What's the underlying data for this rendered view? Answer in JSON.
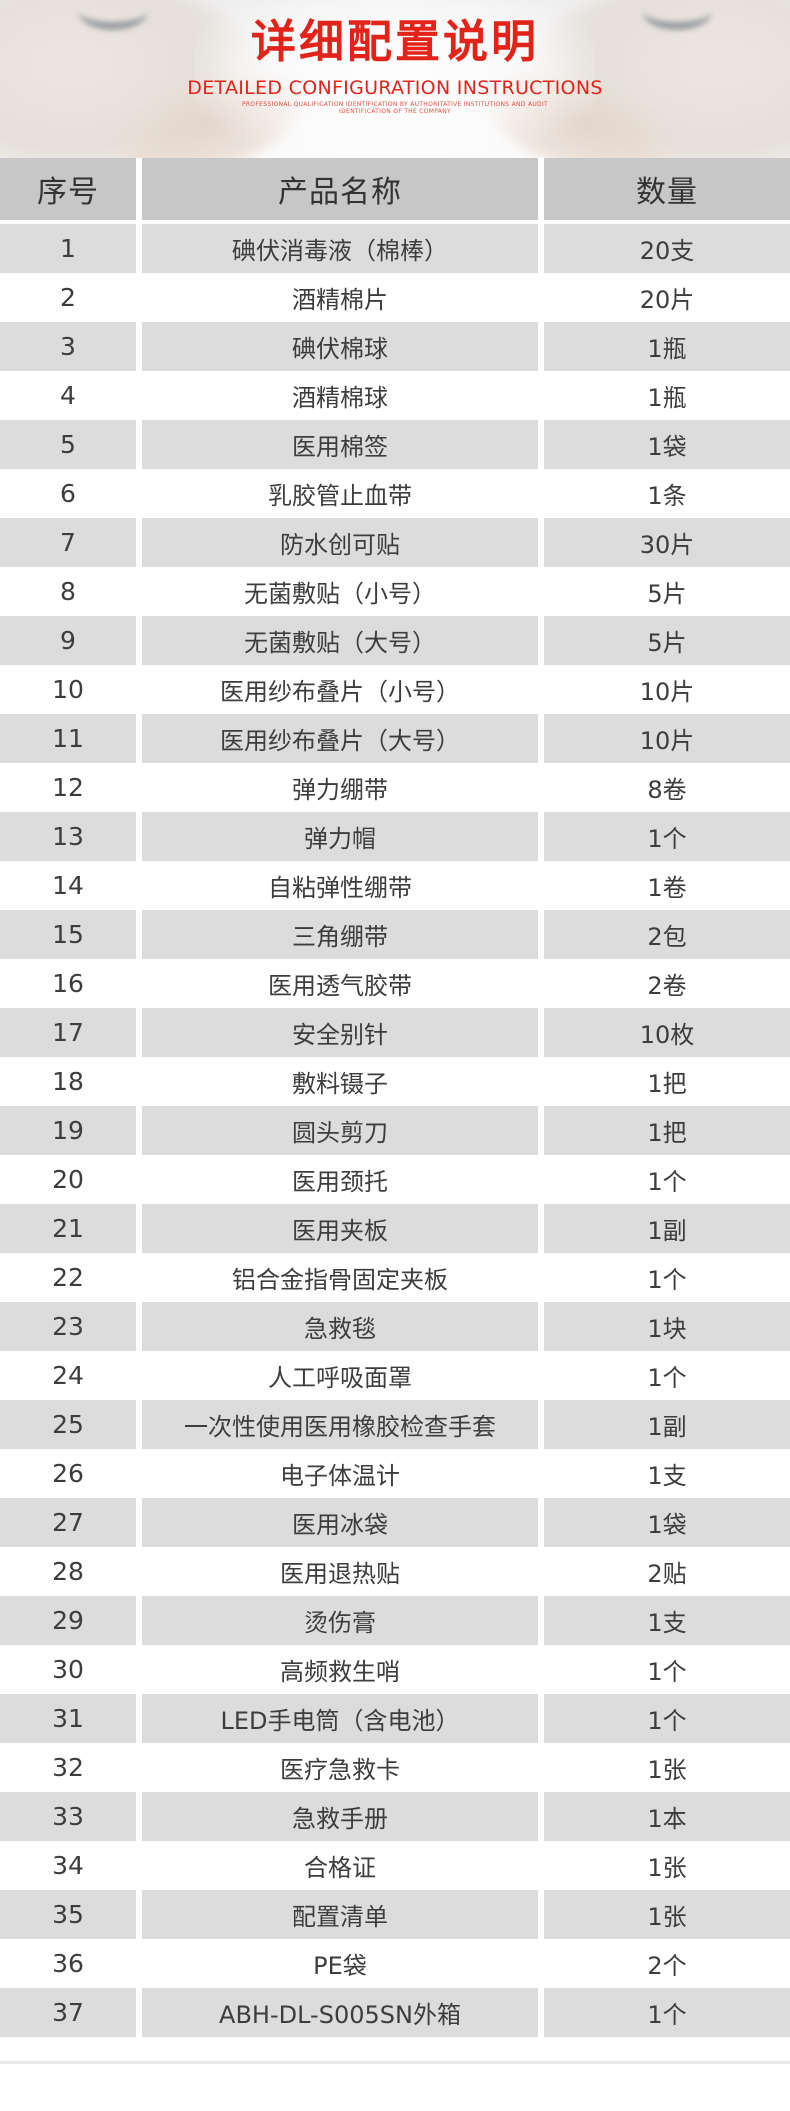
{
  "header": {
    "title": "详细配置说明",
    "subtitle": "DETAILED CONFIGURATION INSTRUCTIONS",
    "fine_print_line1": "PROFESSIONAL QUALIFICATION IDENTIFICATION BY AUTHORITATIVE INSTITUTIONS AND AUDIT",
    "fine_print_line2": "IDENTIFICATION OF THE COMPANY"
  },
  "colors": {
    "accent": "#e2231a",
    "table_header_bg": "#c7c7c7",
    "row_alt_bg": "#dcdcdc",
    "row_bg": "#ffffff",
    "text": "#3d3d3d"
  },
  "table": {
    "columns": [
      "序号",
      "产品名称",
      "数量"
    ],
    "rows": [
      {
        "no": "1",
        "name": "碘伏消毒液（棉棒）",
        "qty": "20支"
      },
      {
        "no": "2",
        "name": "酒精棉片",
        "qty": "20片"
      },
      {
        "no": "3",
        "name": "碘伏棉球",
        "qty": "1瓶"
      },
      {
        "no": "4",
        "name": "酒精棉球",
        "qty": "1瓶"
      },
      {
        "no": "5",
        "name": "医用棉签",
        "qty": "1袋"
      },
      {
        "no": "6",
        "name": "乳胶管止血带",
        "qty": "1条"
      },
      {
        "no": "7",
        "name": "防水创可贴",
        "qty": "30片"
      },
      {
        "no": "8",
        "name": "无菌敷贴（小号）",
        "qty": "5片"
      },
      {
        "no": "9",
        "name": "无菌敷贴（大号）",
        "qty": "5片"
      },
      {
        "no": "10",
        "name": "医用纱布叠片（小号）",
        "qty": "10片"
      },
      {
        "no": "11",
        "name": "医用纱布叠片（大号）",
        "qty": "10片"
      },
      {
        "no": "12",
        "name": "弹力绷带",
        "qty": "8卷"
      },
      {
        "no": "13",
        "name": "弹力帽",
        "qty": "1个"
      },
      {
        "no": "14",
        "name": "自粘弹性绷带",
        "qty": "1卷"
      },
      {
        "no": "15",
        "name": "三角绷带",
        "qty": "2包"
      },
      {
        "no": "16",
        "name": "医用透气胶带",
        "qty": "2卷"
      },
      {
        "no": "17",
        "name": "安全别针",
        "qty": "10枚"
      },
      {
        "no": "18",
        "name": "敷料镊子",
        "qty": "1把"
      },
      {
        "no": "19",
        "name": "圆头剪刀",
        "qty": "1把"
      },
      {
        "no": "20",
        "name": "医用颈托",
        "qty": "1个"
      },
      {
        "no": "21",
        "name": "医用夹板",
        "qty": "1副"
      },
      {
        "no": "22",
        "name": "铝合金指骨固定夹板",
        "qty": "1个"
      },
      {
        "no": "23",
        "name": "急救毯",
        "qty": "1块"
      },
      {
        "no": "24",
        "name": "人工呼吸面罩",
        "qty": "1个"
      },
      {
        "no": "25",
        "name": "一次性使用医用橡胶检查手套",
        "qty": "1副"
      },
      {
        "no": "26",
        "name": "电子体温计",
        "qty": "1支"
      },
      {
        "no": "27",
        "name": "医用冰袋",
        "qty": "1袋"
      },
      {
        "no": "28",
        "name": "医用退热贴",
        "qty": "2贴"
      },
      {
        "no": "29",
        "name": "烫伤膏",
        "qty": "1支"
      },
      {
        "no": "30",
        "name": "高频救生哨",
        "qty": "1个"
      },
      {
        "no": "31",
        "name": "LED手电筒（含电池）",
        "qty": "1个"
      },
      {
        "no": "32",
        "name": "医疗急救卡",
        "qty": "1张"
      },
      {
        "no": "33",
        "name": "急救手册",
        "qty": "1本"
      },
      {
        "no": "34",
        "name": "合格证",
        "qty": "1张"
      },
      {
        "no": "35",
        "name": "配置清单",
        "qty": "1张"
      },
      {
        "no": "36",
        "name": "PE袋",
        "qty": "2个"
      },
      {
        "no": "37",
        "name": "ABH-DL-S005SN外箱",
        "qty": "1个"
      }
    ]
  }
}
